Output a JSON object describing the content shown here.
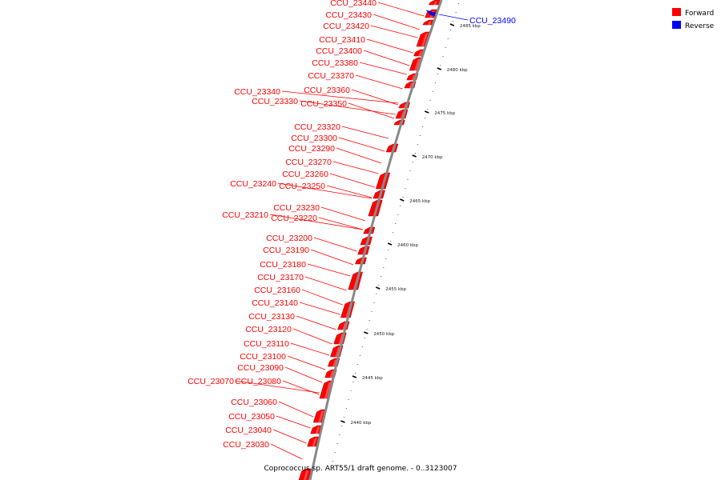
{
  "caption": "Coprococcus sp. ART55/1 draft genome. - 0..3123007",
  "legend": [
    {
      "label": "Forward",
      "color": "#ff0000"
    },
    {
      "label": "Reverse",
      "color": "#0000ff"
    }
  ],
  "colors": {
    "forward": "#ff0000",
    "forward_dark": "#b30000",
    "reverse": "#0000ff",
    "backbone": "#888888",
    "tick": "#000000"
  },
  "ticks": [
    "2485 kbp",
    "2480 kbp",
    "2475 kbp",
    "2470 kbp",
    "2465 kbp",
    "2460 kbp",
    "2455 kbp",
    "2450 kbp",
    "2445 kbp",
    "2440 kbp"
  ],
  "genes": [
    {
      "name": "CCU_23490",
      "strand": "reverse"
    },
    {
      "name": "CCU_23440",
      "strand": "forward"
    },
    {
      "name": "CCU_23430",
      "strand": "forward"
    },
    {
      "name": "CCU_23420",
      "strand": "forward"
    },
    {
      "name": "CCU_23410",
      "strand": "forward"
    },
    {
      "name": "CCU_23400",
      "strand": "forward"
    },
    {
      "name": "CCU_23380",
      "strand": "forward"
    },
    {
      "name": "CCU_23370",
      "strand": "forward"
    },
    {
      "name": "CCU_23360",
      "strand": "forward"
    },
    {
      "name": "CCU_23340",
      "strand": "forward"
    },
    {
      "name": "CCU_23330",
      "strand": "forward"
    },
    {
      "name": "CCU_23350",
      "strand": "forward"
    },
    {
      "name": "CCU_23320",
      "strand": "forward"
    },
    {
      "name": "CCU_23300",
      "strand": "forward"
    },
    {
      "name": "CCU_23290",
      "strand": "forward"
    },
    {
      "name": "CCU_23270",
      "strand": "forward"
    },
    {
      "name": "CCU_23260",
      "strand": "forward"
    },
    {
      "name": "CCU_23240",
      "strand": "forward"
    },
    {
      "name": "CCU_23250",
      "strand": "forward"
    },
    {
      "name": "CCU_23230",
      "strand": "forward"
    },
    {
      "name": "CCU_23210",
      "strand": "forward"
    },
    {
      "name": "CCU_23220",
      "strand": "forward"
    },
    {
      "name": "CCU_23200",
      "strand": "forward"
    },
    {
      "name": "CCU_23190",
      "strand": "forward"
    },
    {
      "name": "CCU_23180",
      "strand": "forward"
    },
    {
      "name": "CCU_23170",
      "strand": "forward"
    },
    {
      "name": "CCU_23160",
      "strand": "forward"
    },
    {
      "name": "CCU_23140",
      "strand": "forward"
    },
    {
      "name": "CCU_23130",
      "strand": "forward"
    },
    {
      "name": "CCU_23120",
      "strand": "forward"
    },
    {
      "name": "CCU_23110",
      "strand": "forward"
    },
    {
      "name": "CCU_23100",
      "strand": "forward"
    },
    {
      "name": "CCU_23090",
      "strand": "forward"
    },
    {
      "name": "CCU_23070",
      "strand": "forward"
    },
    {
      "name": "CCU_23080",
      "strand": "forward"
    },
    {
      "name": "CCU_23060",
      "strand": "forward"
    },
    {
      "name": "CCU_23050",
      "strand": "forward"
    },
    {
      "name": "CCU_23040",
      "strand": "forward"
    },
    {
      "name": "CCU_23030",
      "strand": "forward"
    }
  ]
}
